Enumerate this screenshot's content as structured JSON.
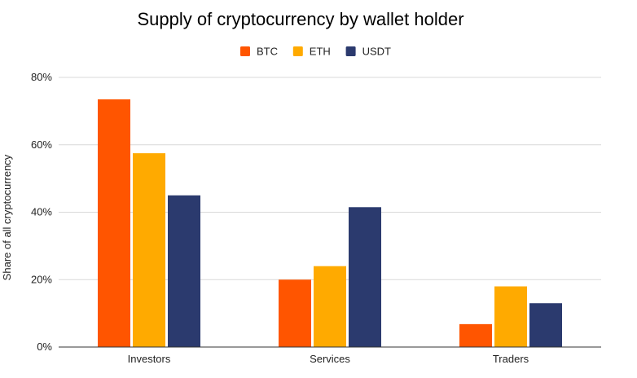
{
  "chart_data": {
    "type": "bar",
    "title": "Supply of cryptocurrency by wallet holder",
    "xlabel": "",
    "ylabel": "Share of all cryptocurrency",
    "categories": [
      "Investors",
      "Services",
      "Traders"
    ],
    "series": [
      {
        "name": "BTC",
        "color": "#ff5500",
        "values": [
          73.5,
          20,
          6.8
        ]
      },
      {
        "name": "ETH",
        "color": "#ffaa00",
        "values": [
          57.5,
          24,
          18
        ]
      },
      {
        "name": "USDT",
        "color": "#2b3a6e",
        "values": [
          45,
          41.5,
          13
        ]
      }
    ],
    "ylim": [
      0,
      80
    ],
    "yticks": [
      0,
      20,
      40,
      60,
      80
    ],
    "ytick_labels": [
      "0%",
      "20%",
      "40%",
      "60%",
      "80%"
    ],
    "grid": true,
    "legend_position": "top-center"
  }
}
